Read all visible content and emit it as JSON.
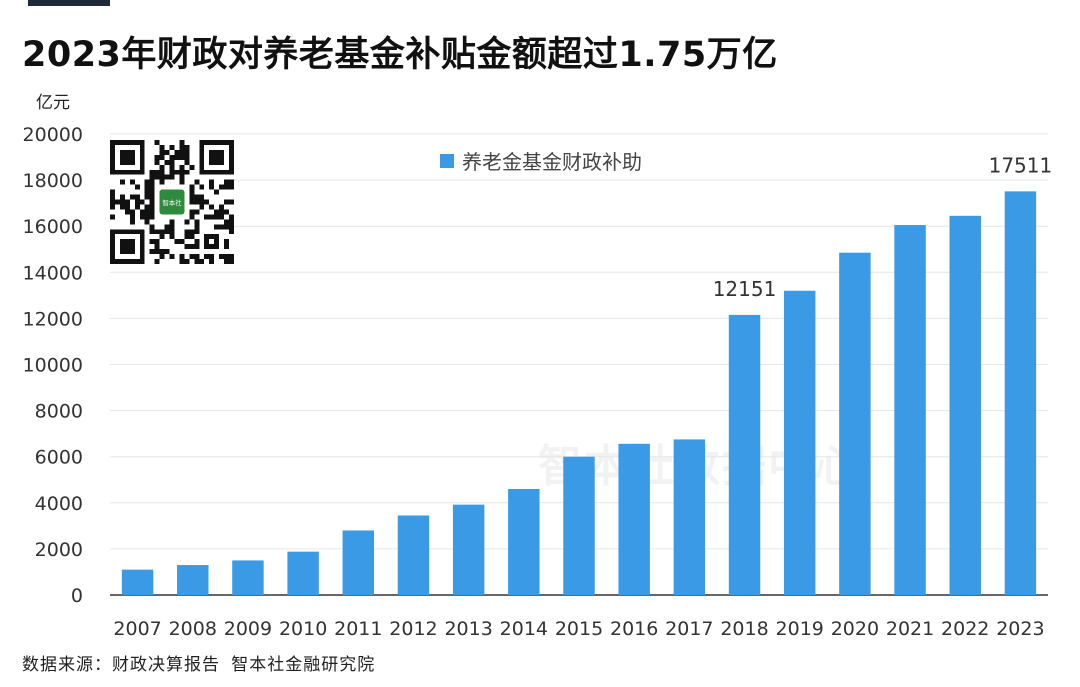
{
  "header": {
    "title": "2023年财政对养老基金补贴金额超过1.75万亿",
    "unit": "亿元"
  },
  "legend": {
    "label": "养老金基金财政补助"
  },
  "footer": {
    "source": "数据来源：财政决算报告 智本社金融研究院"
  },
  "watermark": {
    "text": "智本社数据中心"
  },
  "qr": {
    "logo_text": "智本社"
  },
  "colors": {
    "bar": "#3a9ae6",
    "grid": "#e6e6e6",
    "axis": "#333333"
  },
  "chart_data": {
    "type": "bar",
    "title": "2023年财政对养老基金补贴金额超过1.75万亿",
    "ylabel": "亿元",
    "xlabel": "",
    "ylim": [
      0,
      20000
    ],
    "yticks": [
      0,
      2000,
      4000,
      6000,
      8000,
      10000,
      12000,
      14000,
      16000,
      18000,
      20000
    ],
    "grid": true,
    "legend_position": "top-center",
    "categories": [
      "2007",
      "2008",
      "2009",
      "2010",
      "2011",
      "2012",
      "2013",
      "2014",
      "2015",
      "2016",
      "2017",
      "2018",
      "2019",
      "2020",
      "2021",
      "2022",
      "2023"
    ],
    "series": [
      {
        "name": "养老金基金财政补助",
        "values": [
          1100,
          1300,
          1500,
          1880,
          2800,
          3450,
          3920,
          4600,
          6000,
          6560,
          6750,
          12151,
          13200,
          14850,
          16050,
          16450,
          17511
        ]
      }
    ],
    "data_labels": [
      {
        "category": "2018",
        "text": "12151"
      },
      {
        "category": "2023",
        "text": "17511"
      }
    ]
  }
}
